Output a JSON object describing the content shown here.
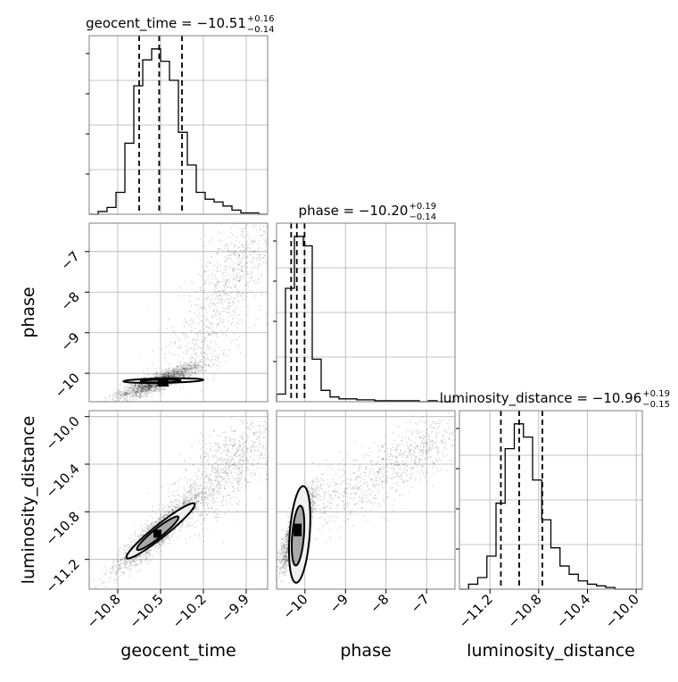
{
  "chart_data": {
    "type": "corner",
    "parameters": [
      "geocent_time",
      "phase",
      "luminosity_distance"
    ],
    "axis_labels": {
      "geocent_time": "geocent_time",
      "phase": "phase",
      "luminosity_distance": "luminosity_distance"
    },
    "titles": {
      "geocent_time": {
        "name": "geocent_time",
        "median": "−10.51",
        "plus": "+0.16",
        "minus": "−0.14"
      },
      "phase": {
        "name": "phase",
        "median": "−10.20",
        "plus": "+0.19",
        "minus": "−0.14"
      },
      "luminosity_distance": {
        "name": "luminosity_distance",
        "median": "−10.96",
        "plus": "+0.19",
        "minus": "−0.15"
      }
    },
    "ranges": {
      "geocent_time": [
        -11.0,
        -9.75
      ],
      "phase": [
        -10.7,
        -6.3
      ],
      "luminosity_distance": [
        -11.45,
        -9.95
      ]
    },
    "ticks": {
      "geocent_time": [
        {
          "v": -10.8,
          "label": "−10.8"
        },
        {
          "v": -10.5,
          "label": "−10.5"
        },
        {
          "v": -10.2,
          "label": "−10.2"
        },
        {
          "v": -9.9,
          "label": "−9.9"
        }
      ],
      "phase": [
        {
          "v": -10,
          "label": "−10"
        },
        {
          "v": -9,
          "label": "−9"
        },
        {
          "v": -8,
          "label": "−8"
        },
        {
          "v": -7,
          "label": "−7"
        }
      ],
      "luminosity_distance": [
        {
          "v": -11.2,
          "label": "−11.2"
        },
        {
          "v": -10.8,
          "label": "−10.8"
        },
        {
          "v": -10.4,
          "label": "−10.4"
        },
        {
          "v": -10.0,
          "label": "−10.0"
        }
      ]
    },
    "quantiles": {
      "geocent_time": [
        -10.65,
        -10.51,
        -10.35
      ],
      "phase": [
        -10.34,
        -10.2,
        -10.01
      ],
      "luminosity_distance": [
        -11.11,
        -10.96,
        -10.77
      ]
    },
    "histograms": {
      "geocent_time": {
        "edges": [
          -11.0,
          -10.9375,
          -10.875,
          -10.8125,
          -10.75,
          -10.6875,
          -10.625,
          -10.5625,
          -10.5,
          -10.4375,
          -10.375,
          -10.3125,
          -10.25,
          -10.1875,
          -10.125,
          -10.0625,
          -10.0,
          -9.9375,
          -9.875,
          -9.8125,
          -9.75
        ],
        "counts": [
          0,
          2,
          5,
          16,
          52,
          94,
          113,
          121,
          112,
          98,
          60,
          36,
          16,
          11,
          9,
          6,
          3,
          1,
          1,
          0
        ]
      },
      "phase": {
        "edges": [
          -10.7,
          -10.48,
          -10.26,
          -10.04,
          -9.82,
          -9.6,
          -9.38,
          -9.16,
          -8.94,
          -8.72,
          -8.5,
          -8.28,
          -8.06,
          -7.84,
          -7.62,
          -7.4,
          -7.18,
          -6.96,
          -6.74,
          -6.52,
          -6.3
        ],
        "counts": [
          8,
          120,
          175,
          165,
          45,
          12,
          5,
          3,
          3,
          2,
          2,
          1,
          1,
          1,
          1,
          1,
          0,
          1,
          0,
          0
        ]
      },
      "luminosity_distance": {
        "edges": [
          -11.45,
          -11.375,
          -11.3,
          -11.225,
          -11.15,
          -11.075,
          -11.0,
          -10.925,
          -10.85,
          -10.775,
          -10.7,
          -10.625,
          -10.55,
          -10.475,
          -10.4,
          -10.325,
          -10.25,
          -10.175,
          -10.1,
          -10.025,
          -9.95
        ],
        "counts": [
          0,
          3,
          7,
          20,
          52,
          85,
          100,
          92,
          66,
          42,
          25,
          14,
          9,
          5,
          3,
          2,
          1,
          0,
          0,
          0
        ]
      }
    },
    "grid": true
  }
}
